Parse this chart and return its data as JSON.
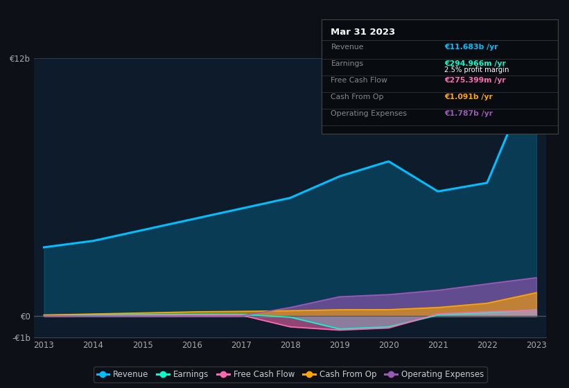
{
  "bg_color": "#0d1117",
  "plot_bg_color": "#0d1b2a",
  "years": [
    2013,
    2014,
    2015,
    2016,
    2017,
    2018,
    2019,
    2020,
    2021,
    2022,
    2023
  ],
  "revenue": [
    3.2,
    3.5,
    4.0,
    4.5,
    5.0,
    5.5,
    6.5,
    7.2,
    5.8,
    6.2,
    11.683
  ],
  "earnings": [
    0.05,
    0.06,
    0.07,
    0.08,
    0.08,
    -0.05,
    -0.6,
    -0.5,
    0.05,
    0.15,
    0.295
  ],
  "free_cash_flow": [
    0.0,
    0.02,
    0.03,
    0.04,
    0.05,
    -0.5,
    -0.65,
    -0.55,
    0.1,
    0.2,
    0.275
  ],
  "cash_from_op": [
    0.05,
    0.1,
    0.15,
    0.2,
    0.22,
    0.25,
    0.3,
    0.3,
    0.4,
    0.6,
    1.091
  ],
  "op_expenses": [
    0.0,
    0.0,
    0.0,
    0.0,
    0.0,
    0.4,
    0.9,
    1.0,
    1.2,
    1.5,
    1.787
  ],
  "revenue_color": "#00bfff",
  "earnings_color": "#00ffcc",
  "free_cash_flow_color": "#ff69b4",
  "cash_from_op_color": "#ffa500",
  "op_expenses_color": "#9b59b6",
  "ylim_min": -1.0,
  "ylim_max": 12.0,
  "yticks": [
    -1.0,
    0.0,
    12.0
  ],
  "ytick_labels": [
    "-€1b",
    "€0",
    "€12b"
  ],
  "xticks": [
    2013,
    2014,
    2015,
    2016,
    2017,
    2018,
    2019,
    2020,
    2021,
    2022,
    2023
  ],
  "info_box": {
    "title": "Mar 31 2023",
    "rows": [
      {
        "label": "Revenue",
        "value": "€11.683b /yr",
        "value_color": "#00bfff",
        "sub_value": ""
      },
      {
        "label": "Earnings",
        "value": "€294.966m /yr",
        "value_color": "#00ffcc",
        "sub_value": "2.5% profit margin"
      },
      {
        "label": "Free Cash Flow",
        "value": "€275.399m /yr",
        "value_color": "#ff69b4",
        "sub_value": ""
      },
      {
        "label": "Cash From Op",
        "value": "€1.091b /yr",
        "value_color": "#ffa500",
        "sub_value": ""
      },
      {
        "label": "Operating Expenses",
        "value": "€1.787b /yr",
        "value_color": "#9b59b6",
        "sub_value": ""
      }
    ]
  },
  "legend_entries": [
    {
      "label": "Revenue",
      "color": "#00bfff"
    },
    {
      "label": "Earnings",
      "color": "#00ffcc"
    },
    {
      "label": "Free Cash Flow",
      "color": "#ff69b4"
    },
    {
      "label": "Cash From Op",
      "color": "#ffa500"
    },
    {
      "label": "Operating Expenses",
      "color": "#9b59b6"
    }
  ]
}
